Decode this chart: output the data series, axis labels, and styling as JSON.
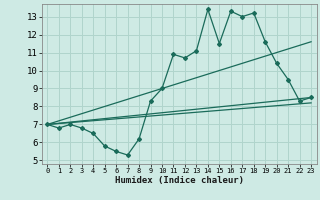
{
  "title": "",
  "xlabel": "Humidex (Indice chaleur)",
  "bg_color": "#ceeae4",
  "grid_color": "#b0d4cc",
  "line_color": "#1a6b5a",
  "xlim": [
    -0.5,
    23.5
  ],
  "ylim": [
    4.8,
    13.7
  ],
  "yticks": [
    5,
    6,
    7,
    8,
    9,
    10,
    11,
    12,
    13
  ],
  "xticks": [
    0,
    1,
    2,
    3,
    4,
    5,
    6,
    7,
    8,
    9,
    10,
    11,
    12,
    13,
    14,
    15,
    16,
    17,
    18,
    19,
    20,
    21,
    22,
    23
  ],
  "main_line_x": [
    0,
    1,
    2,
    3,
    4,
    5,
    6,
    7,
    8,
    9,
    10,
    11,
    12,
    13,
    14,
    15,
    16,
    17,
    18,
    19,
    20,
    21,
    22,
    23
  ],
  "main_line_y": [
    7.0,
    6.8,
    7.0,
    6.8,
    6.5,
    5.8,
    5.5,
    5.3,
    6.2,
    8.3,
    9.0,
    10.9,
    10.7,
    11.1,
    13.4,
    11.5,
    13.3,
    13.0,
    13.2,
    11.6,
    10.4,
    9.5,
    8.3,
    8.5
  ],
  "line2_x": [
    0,
    23
  ],
  "line2_y": [
    7.0,
    11.6
  ],
  "line3_x": [
    0,
    23
  ],
  "line3_y": [
    7.0,
    8.5
  ],
  "line4_x": [
    0,
    23
  ],
  "line4_y": [
    7.0,
    8.2
  ]
}
